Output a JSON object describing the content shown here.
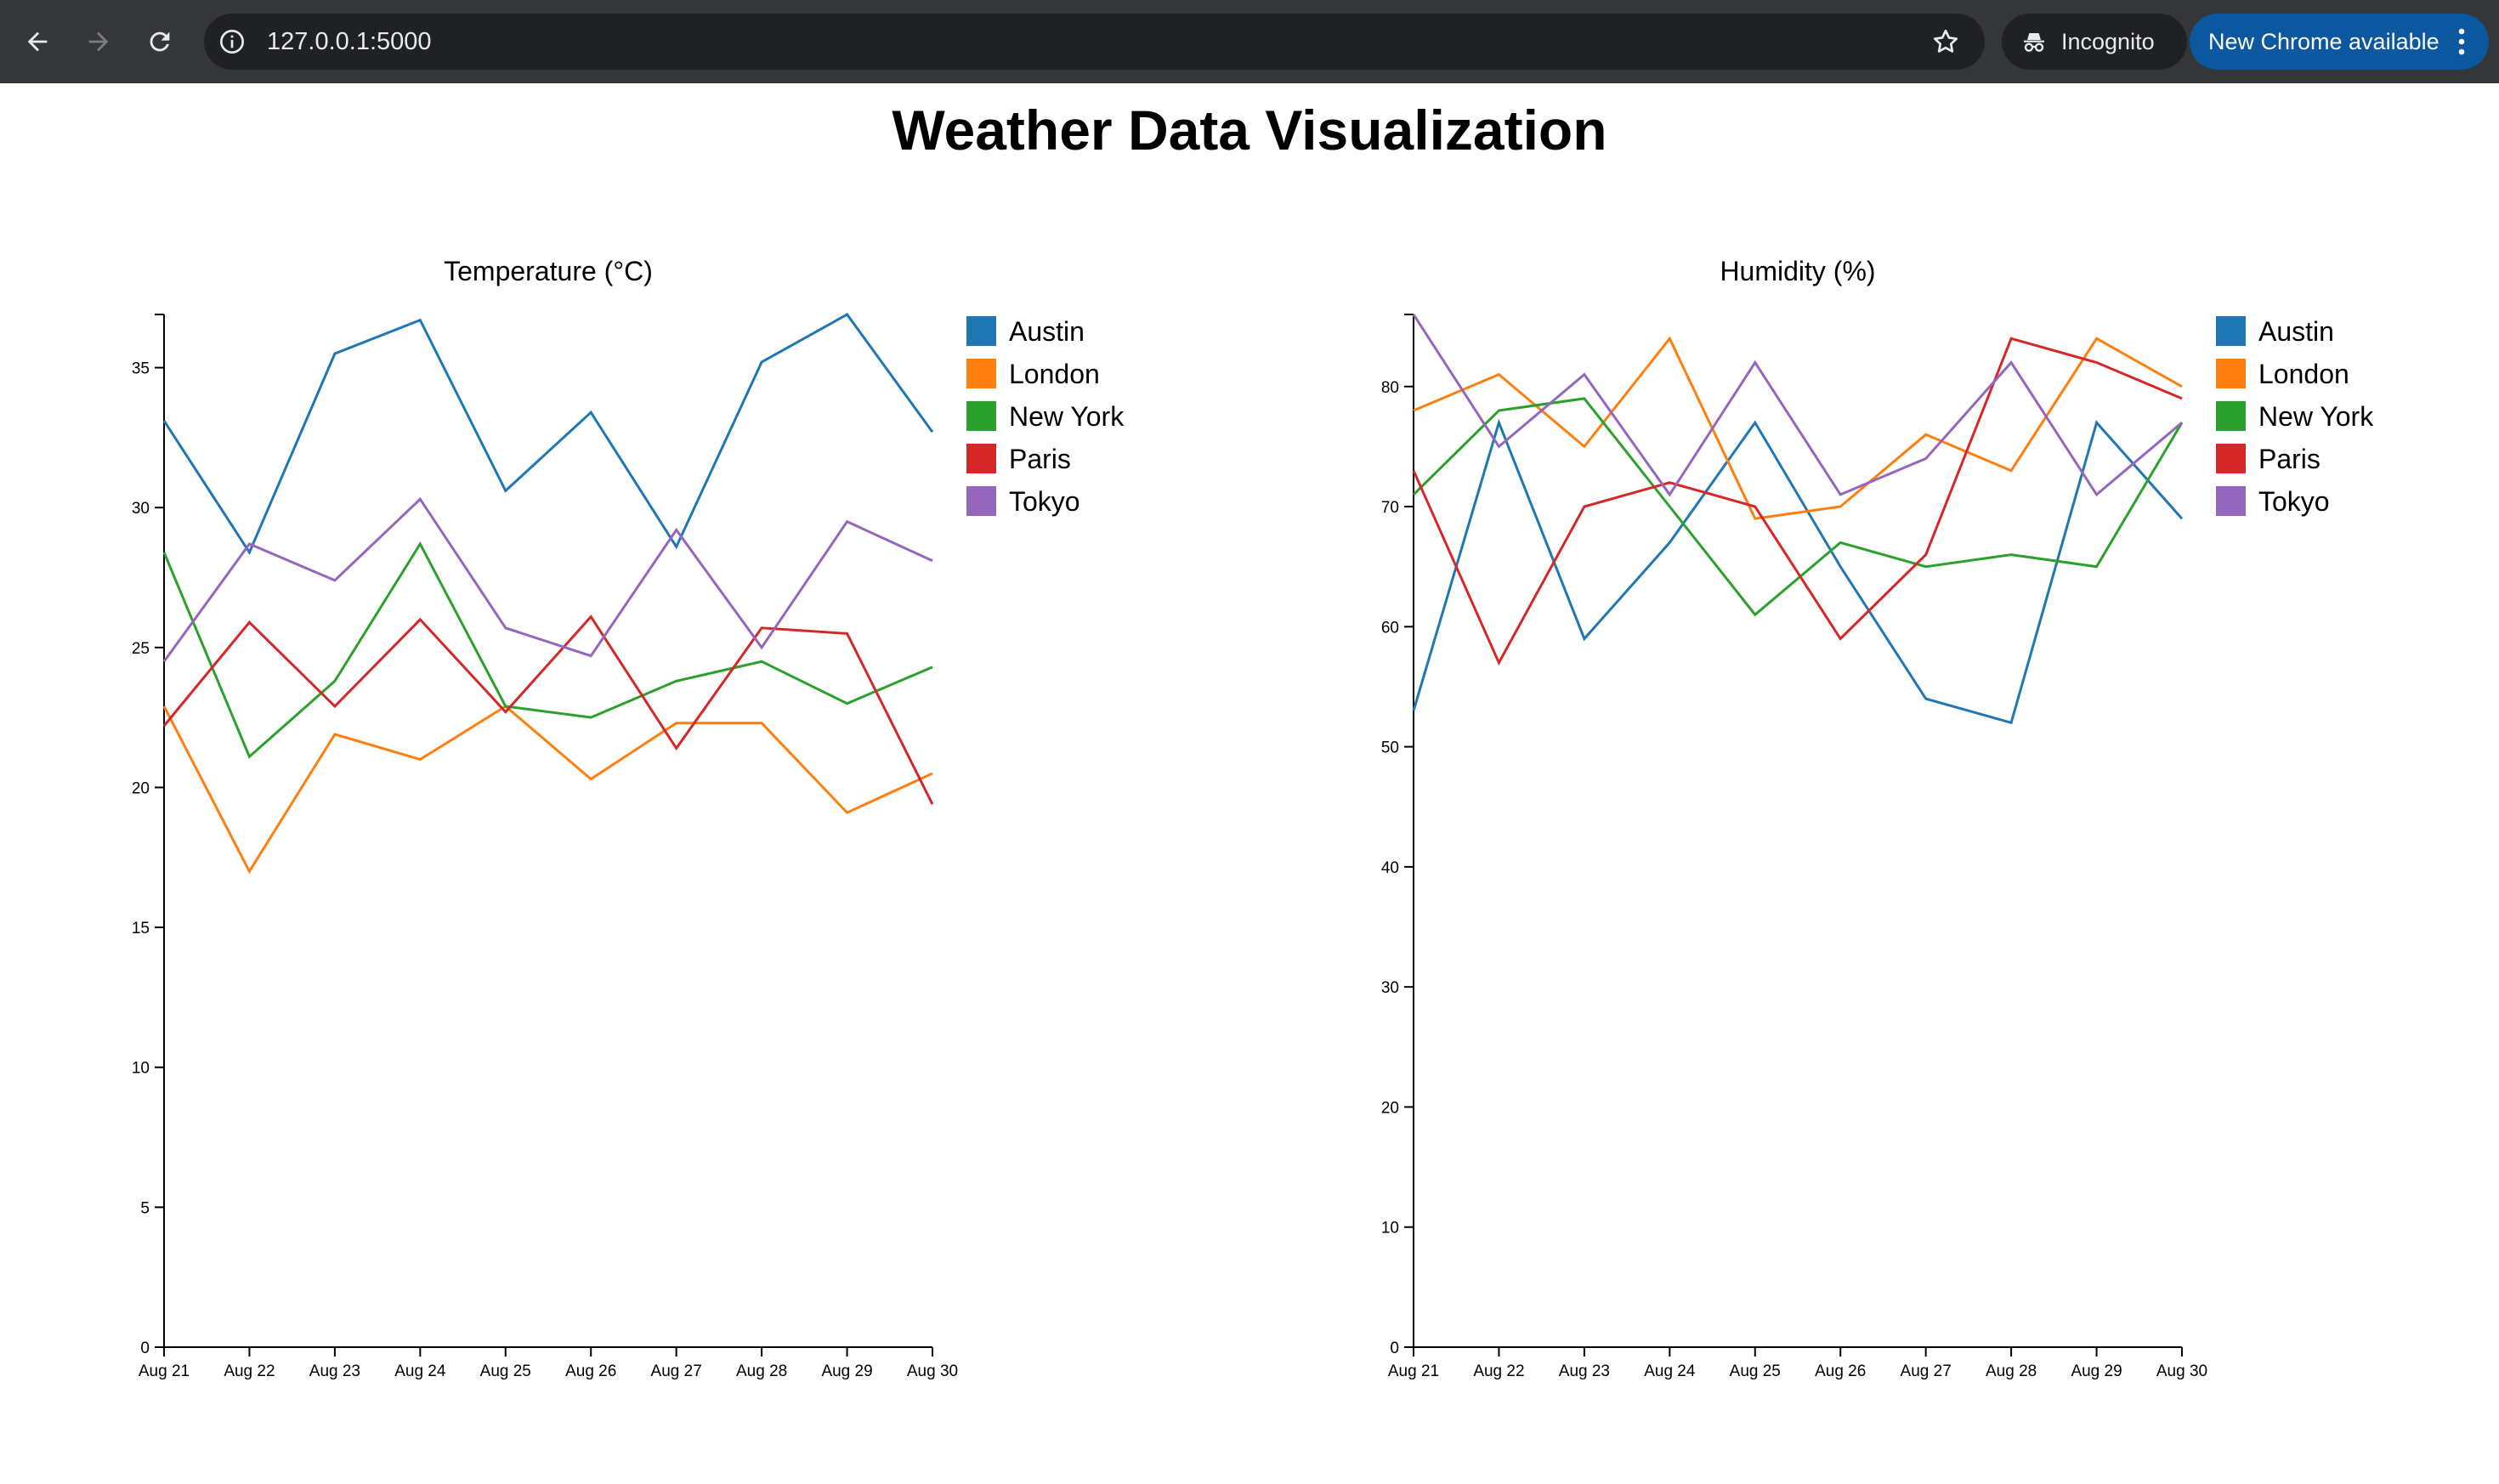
{
  "browser": {
    "url": "127.0.0.1:5000",
    "incognito_label": "Incognito",
    "update_label": "New Chrome available",
    "icons": [
      "back-icon",
      "forward-icon",
      "reload-icon",
      "info-icon",
      "star-icon",
      "incognito-icon",
      "menu-icon"
    ]
  },
  "page": {
    "title": "Weather Data Visualization"
  },
  "series_colors": {
    "Austin": "#1f77b4",
    "London": "#ff7f0e",
    "New York": "#2ca02c",
    "Paris": "#d62728",
    "Tokyo": "#9467bd"
  },
  "chart_data": [
    {
      "type": "line",
      "title": "Temperature (°C)",
      "xlabel": "",
      "ylabel": "",
      "x": [
        "Aug 21",
        "Aug 22",
        "Aug 23",
        "Aug 24",
        "Aug 25",
        "Aug 26",
        "Aug 27",
        "Aug 28",
        "Aug 29",
        "Aug 30"
      ],
      "ylim": [
        0,
        36.9
      ],
      "yticks": [
        0,
        5,
        10,
        15,
        20,
        25,
        30,
        35
      ],
      "legend": "top-right",
      "grid": false,
      "series": [
        {
          "name": "Austin",
          "values": [
            33.1,
            28.4,
            35.5,
            36.7,
            30.6,
            33.4,
            28.6,
            35.2,
            36.9,
            32.7
          ]
        },
        {
          "name": "London",
          "values": [
            22.9,
            17.0,
            21.9,
            21.0,
            22.9,
            20.3,
            22.3,
            22.3,
            19.1,
            20.5
          ]
        },
        {
          "name": "New York",
          "values": [
            28.4,
            21.1,
            23.8,
            28.7,
            22.9,
            22.5,
            23.8,
            24.5,
            23.0,
            24.3
          ]
        },
        {
          "name": "Paris",
          "values": [
            22.2,
            25.9,
            22.9,
            26.0,
            22.7,
            26.1,
            21.4,
            25.7,
            25.5,
            19.4
          ]
        },
        {
          "name": "Tokyo",
          "values": [
            24.5,
            28.7,
            27.4,
            30.3,
            25.7,
            24.7,
            29.2,
            25.0,
            29.5,
            28.1
          ]
        }
      ]
    },
    {
      "type": "line",
      "title": "Humidity (%)",
      "xlabel": "",
      "ylabel": "",
      "x": [
        "Aug 21",
        "Aug 22",
        "Aug 23",
        "Aug 24",
        "Aug 25",
        "Aug 26",
        "Aug 27",
        "Aug 28",
        "Aug 29",
        "Aug 30"
      ],
      "ylim": [
        0,
        86
      ],
      "yticks": [
        0,
        10,
        20,
        30,
        40,
        50,
        60,
        70,
        80
      ],
      "legend": "top-right",
      "grid": false,
      "series": [
        {
          "name": "Austin",
          "values": [
            53,
            77,
            59,
            67,
            77,
            65,
            54,
            52,
            77,
            69
          ]
        },
        {
          "name": "London",
          "values": [
            78,
            81,
            75,
            84,
            69,
            70,
            76,
            73,
            84,
            80
          ]
        },
        {
          "name": "New York",
          "values": [
            71,
            78,
            79,
            70,
            61,
            67,
            65,
            66,
            65,
            77
          ]
        },
        {
          "name": "Paris",
          "values": [
            73,
            57,
            70,
            72,
            70,
            59,
            66,
            84,
            82,
            79
          ]
        },
        {
          "name": "Tokyo",
          "values": [
            86,
            75,
            81,
            71,
            82,
            71,
            74,
            82,
            71,
            77
          ]
        }
      ]
    }
  ]
}
